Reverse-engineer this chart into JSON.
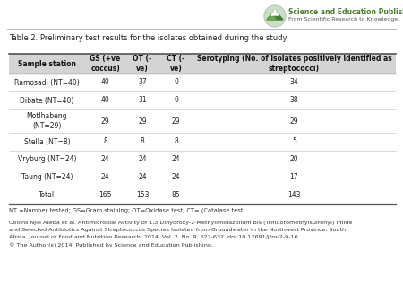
{
  "title": "Table 2. Preliminary test results for the isolates obtained during the study",
  "header": [
    "Sample station",
    "GS (+ve\ncoccus)",
    "OT (-\nve)",
    "CT (-\nve)",
    "Serotyping (No. of isolates positively identified as\nstreptococci)"
  ],
  "rows": [
    [
      "Ramosadi (NT=40)",
      "40",
      "37",
      "0",
      "34"
    ],
    [
      "Dibate (NT=40)",
      "40",
      "31",
      "0",
      "38"
    ],
    [
      "Motlhabeng\n(NT=29)",
      "29",
      "29",
      "29",
      "29"
    ],
    [
      "Stella (NT=8)",
      "8",
      "8",
      "8",
      "5"
    ],
    [
      "Vryburg (NT=24)",
      "24",
      "24",
      "24",
      "20"
    ],
    [
      "Taung (NT=24)",
      "24",
      "24",
      "24",
      "17"
    ],
    [
      "Total",
      "165",
      "153",
      "85",
      "143"
    ]
  ],
  "footer": "NT =Number tested; GS=Gram staining; OT=Oxidase test; CT= (Catalase test;",
  "citation_line1": "Collins Njie Ateba et al. Antimicrobial Activity of 1,3 Dihydroxy-2-Methylimidazolium Bis (Trifluoromethylsulfonyl) Imide",
  "citation_line2": "and Selected Antibiotics Against Streptococcus Species Isolated from Groundwater in the Northwest Province, South",
  "citation_line3": "Africa. Journal of Food and Nutrition Research, 2014, Vol. 2, No. 9, 627-632. doi:10.12691/jfnr-2-9-16",
  "citation_line4": "© The Author(s) 2014. Published by Science and Education Publishing.",
  "header_bg": "#d4d4d4",
  "logo_green": "#4a7c2f",
  "logo_circle": "#c8dfc8"
}
